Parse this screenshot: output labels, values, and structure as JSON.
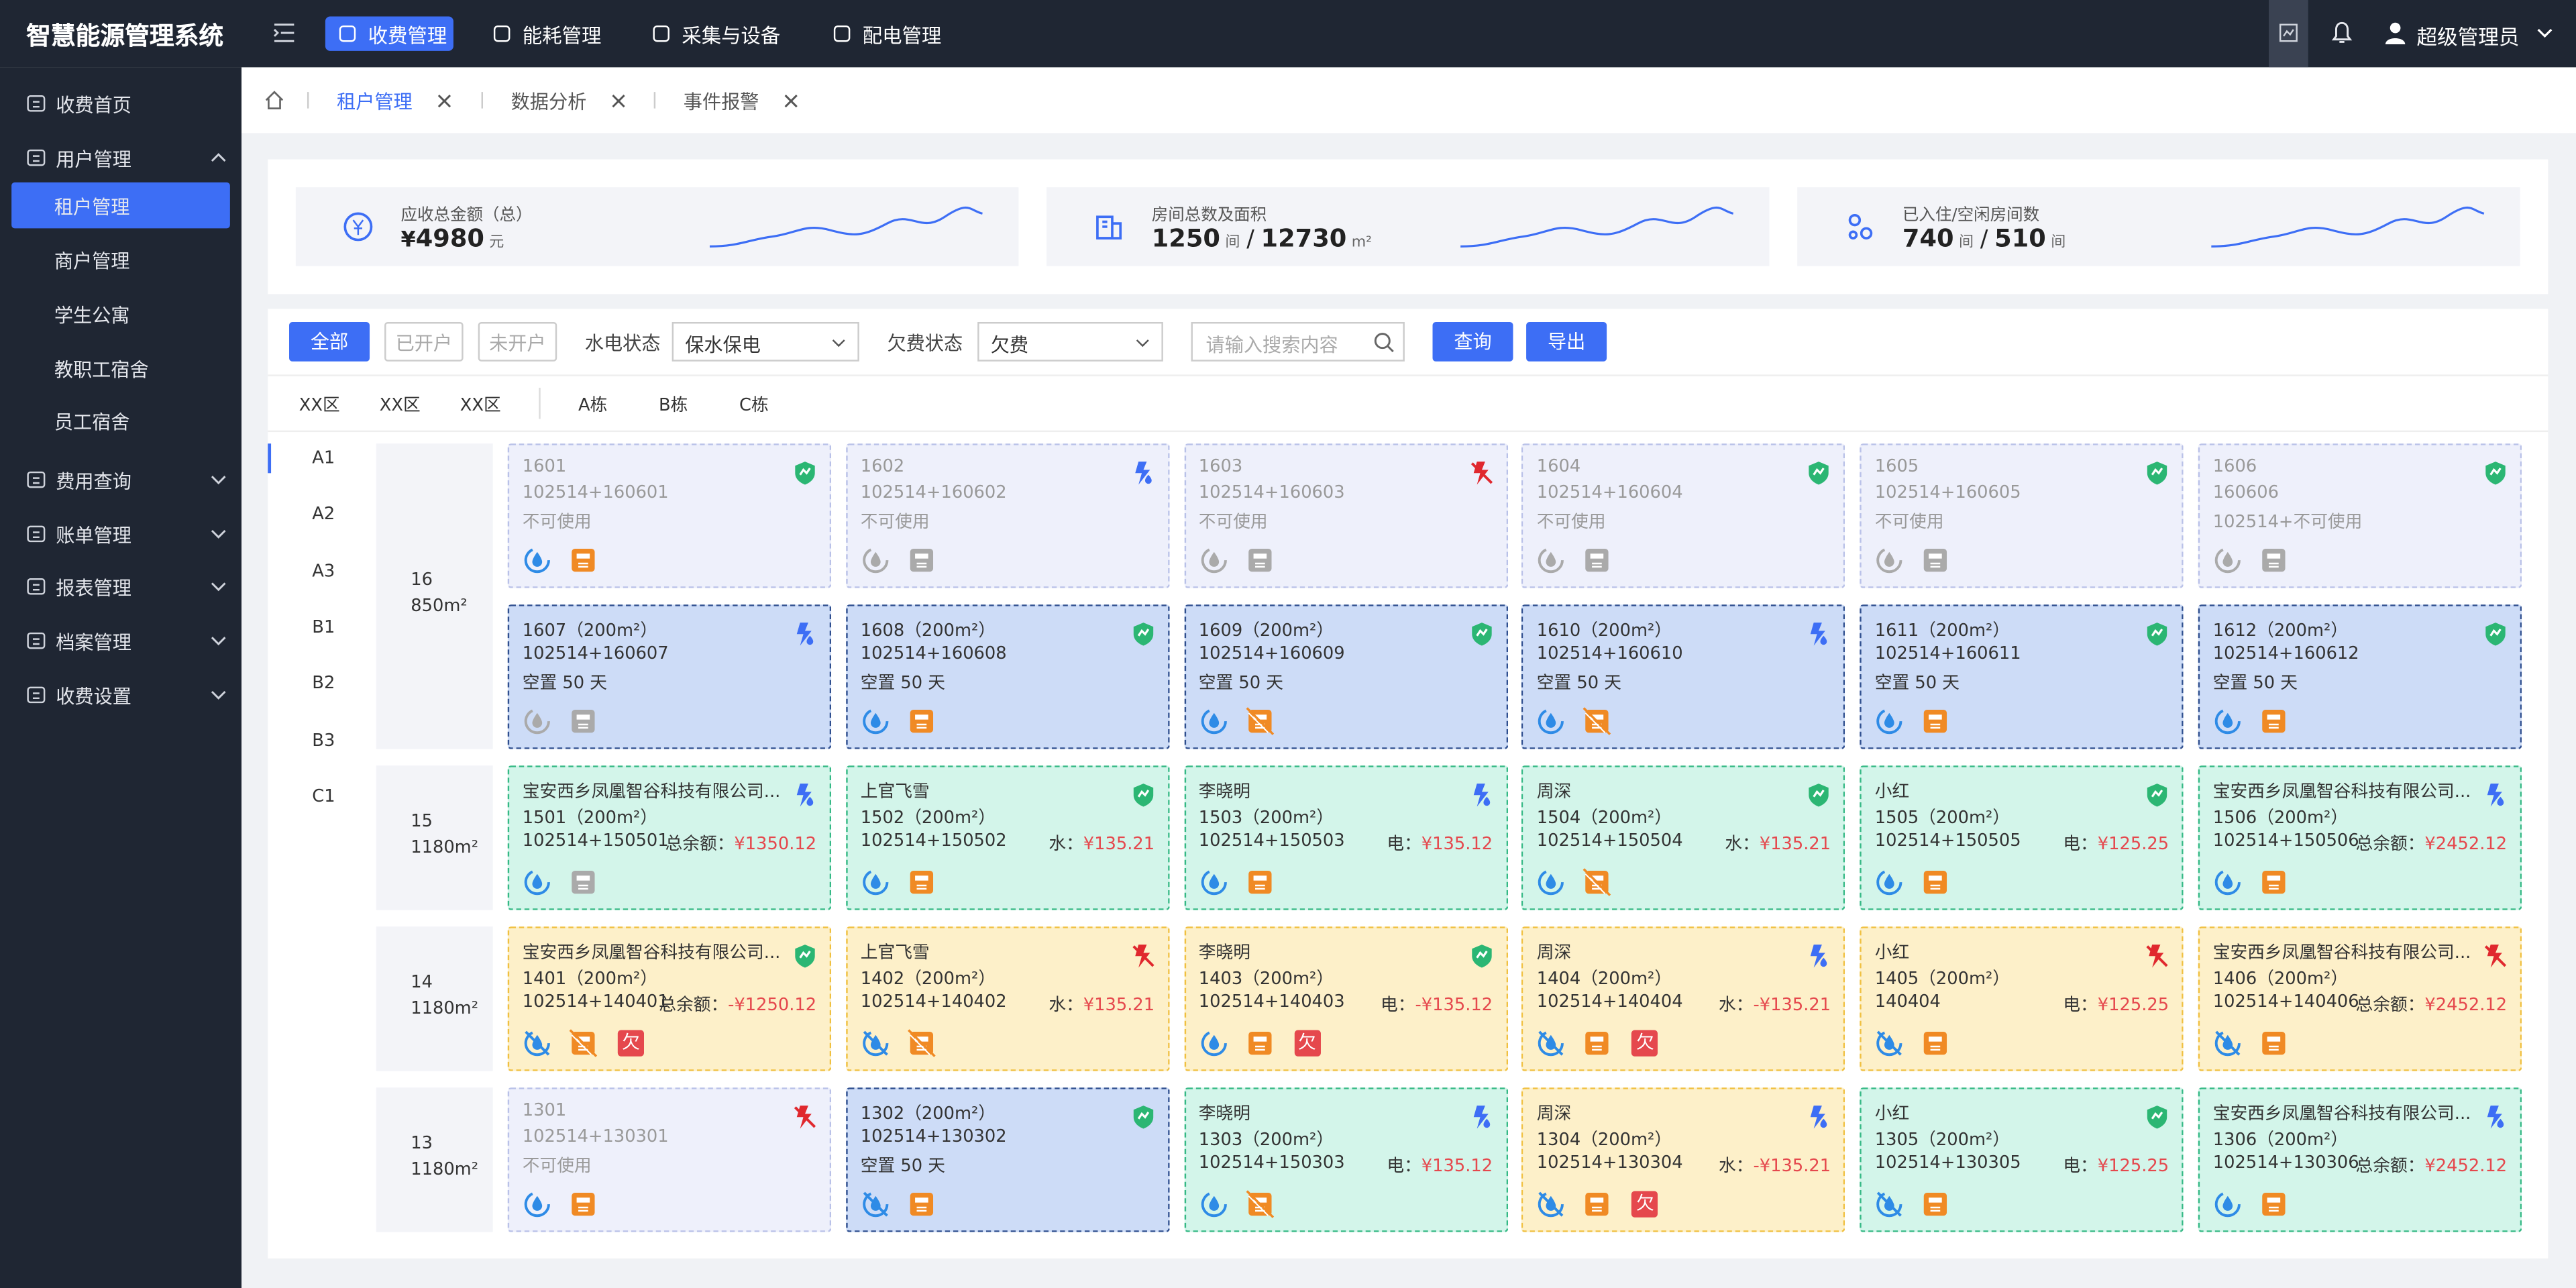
{
  "header": {
    "title": "智慧能源管理系统",
    "nav": [
      {
        "label": "收费管理",
        "active": true
      },
      {
        "label": "能耗管理"
      },
      {
        "label": "采集与设备"
      },
      {
        "label": "配电管理"
      }
    ],
    "user": "超级管理员"
  },
  "sidebar": [
    {
      "label": "收费首页"
    },
    {
      "label": "用户管理",
      "expanded": true,
      "children": [
        {
          "label": "租户管理",
          "active": true
        },
        {
          "label": "商户管理"
        },
        {
          "label": "学生公寓"
        },
        {
          "label": "教职工宿舍"
        },
        {
          "label": "员工宿舍"
        }
      ]
    },
    {
      "label": "费用查询",
      "expanded": false
    },
    {
      "label": "账单管理",
      "expanded": false
    },
    {
      "label": "报表管理",
      "expanded": false
    },
    {
      "label": "档案管理",
      "expanded": false
    },
    {
      "label": "收费设置",
      "expanded": false
    }
  ],
  "tabs": [
    {
      "label": "租户管理",
      "active": true
    },
    {
      "label": "数据分析"
    },
    {
      "label": "事件报警"
    }
  ],
  "stats": [
    {
      "label": "应收总金额（总）",
      "prefix": "¥",
      "values": [
        4980
      ],
      "units": [
        "元"
      ]
    },
    {
      "label": "房间总数及面积",
      "values": [
        1250,
        12730
      ],
      "units": [
        "间",
        "m²"
      ],
      "separator": "/"
    },
    {
      "label": "已入住/空闲房间数",
      "values": [
        740,
        510
      ],
      "units": [
        "间",
        "间"
      ],
      "separator": "/"
    }
  ],
  "filters": {
    "buttons": [
      {
        "label": "全部",
        "active": true
      },
      {
        "label": "已开户"
      },
      {
        "label": "未开户"
      }
    ],
    "power_label": "水电状态",
    "power_value": "保水保电",
    "arrears_label": "欠费状态",
    "arrears_value": "欠费",
    "search_placeholder": "请输入搜索内容",
    "actions": [
      "查询",
      "导出"
    ]
  },
  "zones": [
    "XX区",
    "XX区",
    "XX区"
  ],
  "buildings": [
    "A栋",
    "B栋",
    "C栋"
  ],
  "units": [
    "A1",
    "A2",
    "A3",
    "B1",
    "B2",
    "B3",
    "C1"
  ],
  "floors": [
    {
      "floor": "16",
      "area": "850m²",
      "rooms": [
        {
          "status": "disabled",
          "top": "shield",
          "lines": [
            "1601",
            "102514+160601",
            "不可使用"
          ],
          "icons": [
            "water",
            "meter"
          ]
        },
        {
          "status": "disabled",
          "top": "bolt",
          "lines": [
            "1602",
            "102514+160602",
            "不可使用"
          ],
          "icons": [
            "water-grey",
            "meter-grey"
          ]
        },
        {
          "status": "disabled",
          "top": "cut",
          "lines": [
            "1603",
            "102514+160603",
            "不可使用"
          ],
          "icons": [
            "water-grey",
            "meter-grey"
          ]
        },
        {
          "status": "disabled",
          "top": "shield",
          "lines": [
            "1604",
            "102514+160604",
            "不可使用"
          ],
          "icons": [
            "water-grey",
            "meter-grey"
          ]
        },
        {
          "status": "disabled",
          "top": "shield",
          "lines": [
            "1605",
            "102514+160605",
            "不可使用"
          ],
          "icons": [
            "water-grey",
            "meter-grey"
          ]
        },
        {
          "status": "disabled",
          "top": "shield",
          "lines": [
            "1606",
            "160606",
            "102514+不可使用"
          ],
          "icons": [
            "water-grey",
            "meter-grey"
          ]
        },
        {
          "status": "vacant",
          "top": "bolt",
          "lines": [
            "1607（200m²）",
            "102514+160607",
            "空置 50 天"
          ],
          "icons": [
            "water-grey",
            "meter-grey"
          ]
        },
        {
          "status": "vacant",
          "top": "shield",
          "lines": [
            "1608（200m²）",
            "102514+160608",
            "空置 50 天"
          ],
          "icons": [
            "water",
            "meter"
          ]
        },
        {
          "status": "vacant",
          "top": "shield",
          "lines": [
            "1609（200m²）",
            "102514+160609",
            "空置 50 天"
          ],
          "icons": [
            "water",
            "meter-off"
          ]
        },
        {
          "status": "vacant",
          "top": "bolt",
          "lines": [
            "1610（200m²）",
            "102514+160610",
            "空置 50 天"
          ],
          "icons": [
            "water",
            "meter-off"
          ]
        },
        {
          "status": "vacant",
          "top": "shield",
          "lines": [
            "1611（200m²）",
            "102514+160611",
            "空置 50 天"
          ],
          "icons": [
            "water",
            "meter"
          ]
        },
        {
          "status": "vacant",
          "top": "shield",
          "lines": [
            "1612（200m²）",
            "102514+160612",
            "空置 50 天"
          ],
          "icons": [
            "water",
            "meter"
          ]
        }
      ]
    },
    {
      "floor": "15",
      "area": "1180m²",
      "rooms": [
        {
          "status": "occupied",
          "top": "bolt",
          "lines": [
            "宝安西乡凤凰智谷科技有限公司...",
            "1501（200m²）",
            "102514+150501"
          ],
          "amount_label": "总余额：",
          "amount": "¥1350.12",
          "icons": [
            "water",
            "meter-grey"
          ]
        },
        {
          "status": "occupied",
          "top": "shield",
          "lines": [
            "上官飞雪",
            "1502（200m²）",
            "102514+150502"
          ],
          "amount_label": "水：",
          "amount": "¥135.21",
          "icons": [
            "water",
            "meter"
          ]
        },
        {
          "status": "occupied",
          "top": "bolt",
          "lines": [
            "李晓明",
            "1503（200m²）",
            "102514+150503"
          ],
          "amount_label": "电：",
          "amount": "¥135.12",
          "icons": [
            "water",
            "meter"
          ]
        },
        {
          "status": "occupied",
          "top": "shield",
          "lines": [
            "周深",
            "1504（200m²）",
            "102514+150504"
          ],
          "amount_label": "水：",
          "amount": "¥135.21",
          "icons": [
            "water",
            "meter-off"
          ]
        },
        {
          "status": "occupied",
          "top": "shield",
          "lines": [
            "小红",
            "1505（200m²）",
            "102514+150505"
          ],
          "amount_label": "电：",
          "amount": "¥125.25",
          "icons": [
            "water",
            "meter"
          ]
        },
        {
          "status": "occupied",
          "top": "bolt",
          "lines": [
            "宝安西乡凤凰智谷科技有限公司...",
            "1506（200m²）",
            "102514+150506"
          ],
          "amount_label": "总余额：",
          "amount": "¥2452.12",
          "icons": [
            "water",
            "meter"
          ]
        }
      ]
    },
    {
      "floor": "14",
      "area": "1180m²",
      "rooms": [
        {
          "status": "arrears",
          "top": "shield",
          "lines": [
            "宝安西乡凤凰智谷科技有限公司...",
            "1401（200m²）",
            "102514+140401"
          ],
          "amount_label": "总余额：",
          "amount": "-¥1250.12",
          "icons": [
            "water-off",
            "meter-off",
            "欠"
          ]
        },
        {
          "status": "arrears",
          "top": "cut",
          "lines": [
            "上官飞雪",
            "1402（200m²）",
            "102514+140402"
          ],
          "amount_label": "水：",
          "amount": "¥135.21",
          "icons": [
            "water-off",
            "meter-off"
          ]
        },
        {
          "status": "arrears",
          "top": "shield",
          "lines": [
            "李晓明",
            "1403（200m²）",
            "102514+140403"
          ],
          "amount_label": "电：",
          "amount": "-¥135.12",
          "icons": [
            "water",
            "meter",
            "欠"
          ]
        },
        {
          "status": "arrears",
          "top": "bolt",
          "lines": [
            "周深",
            "1404（200m²）",
            "102514+140404"
          ],
          "amount_label": "水：",
          "amount": "-¥135.21",
          "icons": [
            "water-off",
            "meter",
            "欠"
          ]
        },
        {
          "status": "arrears",
          "top": "cut",
          "lines": [
            "小红",
            "1405（200m²）",
            "140404"
          ],
          "amount_label": "电：",
          "amount": "¥125.25",
          "icons": [
            "water-off",
            "meter"
          ]
        },
        {
          "status": "arrears",
          "top": "cut",
          "lines": [
            "宝安西乡凤凰智谷科技有限公司...",
            "1406（200m²）",
            "102514+140406"
          ],
          "amount_label": "总余额：",
          "amount": "¥2452.12",
          "icons": [
            "water-off",
            "meter"
          ]
        }
      ]
    },
    {
      "floor": "13",
      "area": "1180m²",
      "rooms": [
        {
          "status": "disabled",
          "top": "cut",
          "lines": [
            "1301",
            "102514+130301",
            "不可使用"
          ],
          "icons": [
            "water",
            "meter"
          ]
        },
        {
          "status": "vacant",
          "top": "shield",
          "lines": [
            "1302（200m²）",
            "102514+130302",
            "空置 50 天"
          ],
          "icons": [
            "water-off",
            "meter"
          ]
        },
        {
          "status": "occupied",
          "top": "bolt",
          "lines": [
            "李晓明",
            "1303（200m²）",
            "102514+150303"
          ],
          "amount_label": "电：",
          "amount": "¥135.12",
          "icons": [
            "water",
            "meter-off"
          ]
        },
        {
          "status": "arrears",
          "top": "bolt",
          "lines": [
            "周深",
            "1304（200m²）",
            "102514+130304"
          ],
          "amount_label": "水：",
          "amount": "-¥135.21",
          "icons": [
            "water-off",
            "meter",
            "欠"
          ]
        },
        {
          "status": "occupied",
          "top": "shield",
          "lines": [
            "小红",
            "1305（200m²）",
            "102514+130305"
          ],
          "amount_label": "电：",
          "amount": "¥125.25",
          "icons": [
            "water-off",
            "meter"
          ]
        },
        {
          "status": "occupied",
          "top": "bolt",
          "lines": [
            "宝安西乡凤凰智谷科技有限公司...",
            "1306（200m²）",
            "102514+130306"
          ],
          "amount_label": "总余额：",
          "amount": "¥2452.12",
          "icons": [
            "water",
            "meter"
          ]
        }
      ]
    }
  ]
}
